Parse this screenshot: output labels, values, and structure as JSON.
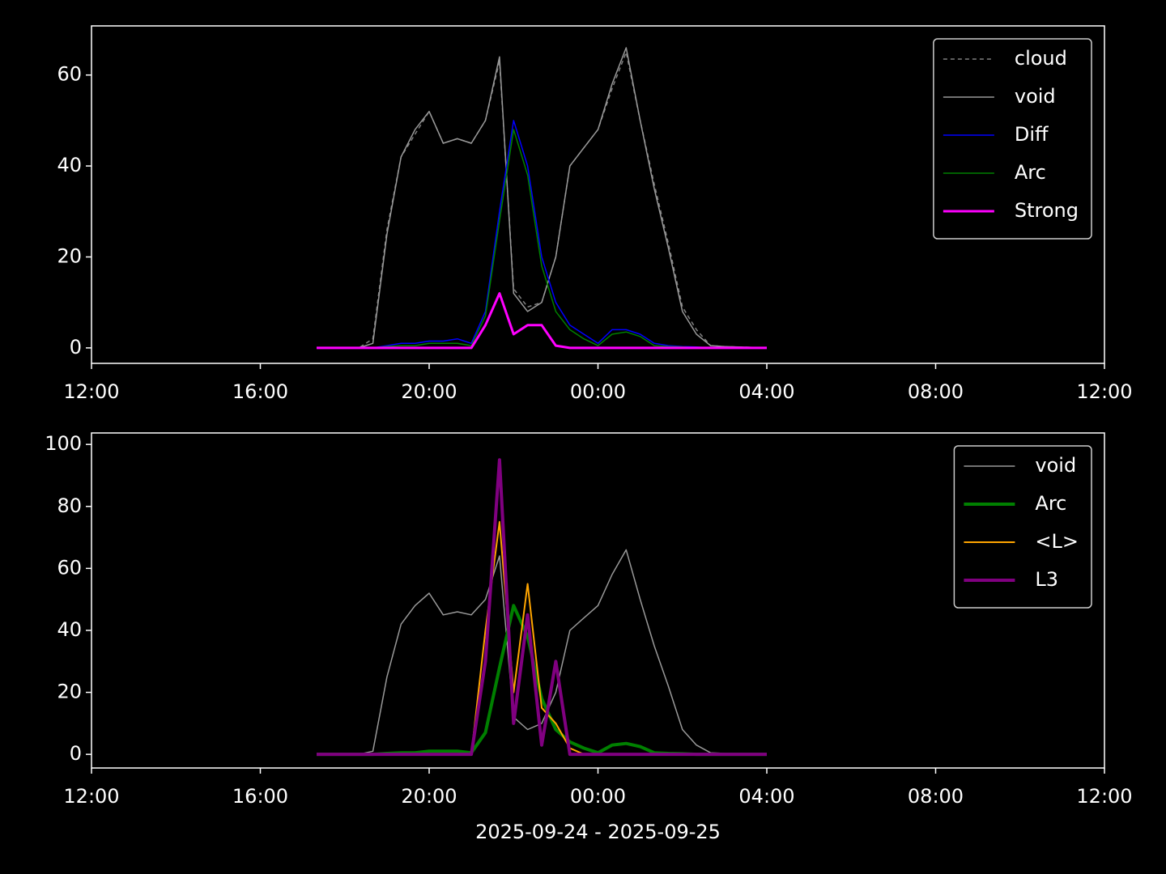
{
  "chart_data": [
    {
      "type": "line",
      "x": [
        "2025-09-24T17:20",
        "2025-09-24T17:40",
        "2025-09-24T18:00",
        "2025-09-24T18:20",
        "2025-09-24T18:40",
        "2025-09-24T19:00",
        "2025-09-24T19:20",
        "2025-09-24T19:40",
        "2025-09-24T20:00",
        "2025-09-24T20:20",
        "2025-09-24T20:40",
        "2025-09-24T21:00",
        "2025-09-24T21:20",
        "2025-09-24T21:40",
        "2025-09-24T22:00",
        "2025-09-24T22:20",
        "2025-09-24T22:40",
        "2025-09-24T23:00",
        "2025-09-24T23:20",
        "2025-09-24T23:40",
        "2025-09-25T00:00",
        "2025-09-25T00:20",
        "2025-09-25T00:40",
        "2025-09-25T01:00",
        "2025-09-25T01:20",
        "2025-09-25T01:40",
        "2025-09-25T02:00",
        "2025-09-25T02:20",
        "2025-09-25T02:40",
        "2025-09-25T03:00",
        "2025-09-25T03:20",
        "2025-09-25T03:40",
        "2025-09-25T04:00"
      ],
      "series": [
        {
          "name": "cloud",
          "color": "#808080",
          "dash": "5,4",
          "width": 1.5,
          "values": [
            0,
            0,
            0,
            0,
            2,
            26,
            42,
            47,
            52,
            45,
            46,
            45,
            50,
            63,
            13,
            9,
            10,
            20,
            40,
            44,
            48,
            57,
            65,
            50,
            36,
            23,
            9,
            4,
            0.5,
            0.3,
            0.2,
            0.1,
            0
          ]
        },
        {
          "name": "void",
          "color": "#999999",
          "width": 1.5,
          "values": [
            0,
            0,
            0,
            0,
            1,
            25,
            42,
            48,
            52,
            45,
            46,
            45,
            50,
            64,
            12,
            8,
            10,
            20,
            40,
            44,
            48,
            58,
            66,
            50,
            35,
            22,
            8,
            3,
            0.5,
            0.3,
            0.2,
            0.1,
            0
          ]
        },
        {
          "name": "Diff",
          "color": "#0000ff",
          "width": 1.5,
          "values": [
            0,
            0,
            0,
            0,
            0,
            0.5,
            1,
            1,
            1.5,
            1.5,
            2,
            1,
            8,
            30,
            50,
            40,
            20,
            10,
            5,
            3,
            1,
            4,
            4,
            3,
            1,
            0.5,
            0.3,
            0.2,
            0,
            0,
            0,
            0,
            0
          ]
        },
        {
          "name": "Arc",
          "color": "#008000",
          "width": 1.5,
          "values": [
            0,
            0,
            0,
            0,
            0,
            0.3,
            0.5,
            0.5,
            1,
            1,
            1,
            0.5,
            7,
            28,
            48,
            38,
            18,
            8,
            4,
            2,
            0.5,
            3,
            3.5,
            2.5,
            0.5,
            0.3,
            0.2,
            0,
            0,
            0,
            0,
            0,
            0
          ]
        },
        {
          "name": "Strong",
          "color": "#ff00ff",
          "width": 3,
          "values": [
            0,
            0,
            0,
            0,
            0,
            0,
            0,
            0,
            0,
            0,
            0,
            0,
            5,
            12,
            3,
            5,
            5,
            0.5,
            0,
            0,
            0,
            0,
            0,
            0,
            0,
            0,
            0,
            0,
            0,
            0,
            0,
            0,
            0
          ]
        }
      ],
      "xlim": [
        "2025-09-24T12:00",
        "2025-09-25T12:00"
      ],
      "xticks": [
        {
          "value": "2025-09-24T12:00",
          "label": "12:00"
        },
        {
          "value": "2025-09-24T16:00",
          "label": "16:00"
        },
        {
          "value": "2025-09-24T20:00",
          "label": "20:00"
        },
        {
          "value": "2025-09-25T00:00",
          "label": "00:00"
        },
        {
          "value": "2025-09-25T04:00",
          "label": "04:00"
        },
        {
          "value": "2025-09-25T08:00",
          "label": "08:00"
        },
        {
          "value": "2025-09-25T12:00",
          "label": "12:00"
        }
      ],
      "ylim": [
        -3.4,
        70.8
      ],
      "yticks": [
        0,
        20,
        40,
        60
      ],
      "legend": "upper right"
    },
    {
      "type": "line",
      "x": [
        "2025-09-24T17:20",
        "2025-09-24T17:40",
        "2025-09-24T18:00",
        "2025-09-24T18:20",
        "2025-09-24T18:40",
        "2025-09-24T19:00",
        "2025-09-24T19:20",
        "2025-09-24T19:40",
        "2025-09-24T20:00",
        "2025-09-24T20:20",
        "2025-09-24T20:40",
        "2025-09-24T21:00",
        "2025-09-24T21:20",
        "2025-09-24T21:40",
        "2025-09-24T22:00",
        "2025-09-24T22:20",
        "2025-09-24T22:40",
        "2025-09-24T23:00",
        "2025-09-24T23:20",
        "2025-09-24T23:40",
        "2025-09-25T00:00",
        "2025-09-25T00:20",
        "2025-09-25T00:40",
        "2025-09-25T01:00",
        "2025-09-25T01:20",
        "2025-09-25T01:40",
        "2025-09-25T02:00",
        "2025-09-25T02:20",
        "2025-09-25T02:40",
        "2025-09-25T03:00",
        "2025-09-25T03:20",
        "2025-09-25T03:40",
        "2025-09-25T04:00"
      ],
      "series": [
        {
          "name": "void",
          "color": "#999999",
          "width": 1.5,
          "values": [
            0,
            0,
            0,
            0,
            1,
            25,
            42,
            48,
            52,
            45,
            46,
            45,
            50,
            64,
            12,
            8,
            10,
            20,
            40,
            44,
            48,
            58,
            66,
            50,
            35,
            22,
            8,
            3,
            0.5,
            0.3,
            0.2,
            0.1,
            0
          ]
        },
        {
          "name": "Arc",
          "color": "#008000",
          "width": 4,
          "values": [
            0,
            0,
            0,
            0,
            0,
            0.3,
            0.5,
            0.5,
            1,
            1,
            1,
            0.5,
            7,
            28,
            48,
            38,
            18,
            8,
            4,
            2,
            0.5,
            3,
            3.5,
            2.5,
            0.5,
            0.3,
            0.2,
            0,
            0,
            0,
            0,
            0,
            0
          ]
        },
        {
          "name": "<L>",
          "color": "#ffa500",
          "width": 2,
          "values": [
            0,
            0,
            0,
            0,
            0,
            0,
            0,
            0,
            0,
            0,
            0,
            0,
            40,
            75,
            20,
            55,
            15,
            10,
            2,
            0,
            0,
            0,
            0,
            0,
            0,
            0,
            0,
            0,
            0,
            0,
            0,
            0,
            0
          ]
        },
        {
          "name": "L3",
          "color": "#800080",
          "width": 4,
          "values": [
            0,
            0,
            0,
            0,
            0,
            0,
            0,
            0,
            0,
            0,
            0,
            0,
            30,
            95,
            10,
            45,
            3,
            30,
            0,
            0,
            0,
            0,
            0,
            0,
            0,
            0,
            0,
            0,
            0,
            0,
            0,
            0,
            0
          ]
        }
      ],
      "xlim": [
        "2025-09-24T12:00",
        "2025-09-25T12:00"
      ],
      "xticks": [
        {
          "value": "2025-09-24T12:00",
          "label": "12:00"
        },
        {
          "value": "2025-09-24T16:00",
          "label": "16:00"
        },
        {
          "value": "2025-09-24T20:00",
          "label": "20:00"
        },
        {
          "value": "2025-09-25T00:00",
          "label": "00:00"
        },
        {
          "value": "2025-09-25T04:00",
          "label": "04:00"
        },
        {
          "value": "2025-09-25T08:00",
          "label": "08:00"
        },
        {
          "value": "2025-09-25T12:00",
          "label": "12:00"
        }
      ],
      "ylim": [
        -4.4,
        103.7
      ],
      "yticks": [
        0,
        20,
        40,
        60,
        80,
        100
      ],
      "legend": "upper right",
      "xlabel": "2025-09-24 - 2025-09-25"
    }
  ]
}
